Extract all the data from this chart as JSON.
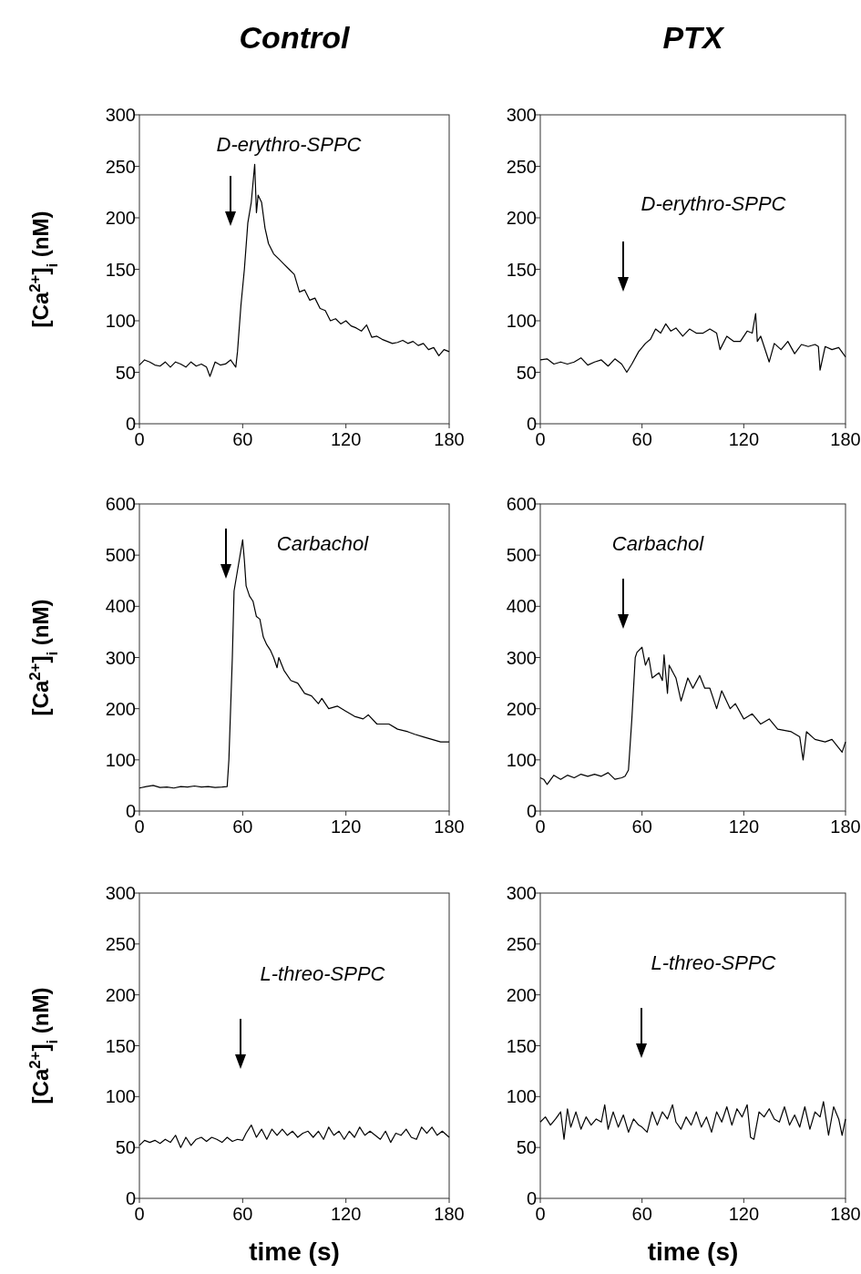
{
  "chart_data": [
    {
      "type": "line",
      "title": "Control",
      "ylabel": "[Ca$^{2+}$]$_{i}$ (nM)",
      "xlim": [
        0,
        180
      ],
      "xticks": [
        0,
        60,
        120,
        180
      ],
      "ylim": [
        0,
        300
      ],
      "yticks": [
        0,
        50,
        100,
        150,
        200,
        250,
        300
      ],
      "tick_labels": "xy",
      "annotations": [
        "D-erythro-SPPC"
      ],
      "series": [
        {
          "color": "#000000",
          "x": [
            0,
            3,
            6,
            9,
            12,
            15,
            18,
            21,
            24,
            27,
            30,
            33,
            36,
            39,
            41,
            44,
            47,
            50,
            53,
            56,
            57,
            59,
            61,
            63,
            65,
            67,
            68,
            69,
            71,
            73,
            75,
            78,
            81,
            84,
            87,
            90,
            93,
            96,
            99,
            102,
            105,
            108,
            111,
            114,
            117,
            120,
            123,
            126,
            129,
            132,
            135,
            138,
            141,
            144,
            147,
            150,
            153,
            156,
            159,
            162,
            165,
            168,
            171,
            174,
            177,
            180
          ],
          "values": [
            57,
            62,
            60,
            57,
            56,
            60,
            55,
            60,
            58,
            55,
            60,
            56,
            58,
            55,
            46,
            60,
            57,
            58,
            62,
            55,
            70,
            115,
            150,
            195,
            215,
            252,
            205,
            222,
            215,
            190,
            175,
            165,
            160,
            155,
            150,
            145,
            128,
            130,
            120,
            122,
            112,
            110,
            100,
            102,
            97,
            100,
            95,
            93,
            90,
            96,
            84,
            85,
            82,
            80,
            78,
            79,
            81,
            78,
            80,
            76,
            78,
            72,
            74,
            66,
            72,
            70
          ]
        }
      ]
    },
    {
      "type": "line",
      "title": "PTX",
      "xlim": [
        0,
        180
      ],
      "xticks": [
        0,
        60,
        120,
        180
      ],
      "ylim": [
        0,
        300
      ],
      "yticks": [
        0,
        50,
        100,
        150,
        200,
        250,
        300
      ],
      "annotations": [
        "D-erythro-SPPC"
      ],
      "series": [
        {
          "color": "#000000",
          "x": [
            0,
            4,
            8,
            12,
            16,
            20,
            24,
            28,
            32,
            36,
            40,
            44,
            48,
            51,
            54,
            58,
            62,
            65,
            68,
            71,
            74,
            77,
            80,
            84,
            88,
            92,
            96,
            100,
            104,
            106,
            110,
            114,
            118,
            122,
            125,
            127,
            128,
            130,
            132,
            135,
            138,
            142,
            146,
            150,
            154,
            158,
            162,
            164,
            165,
            168,
            172,
            176,
            180
          ],
          "values": [
            62,
            63,
            58,
            60,
            58,
            60,
            64,
            57,
            60,
            62,
            56,
            63,
            58,
            50,
            58,
            70,
            78,
            82,
            92,
            88,
            97,
            90,
            93,
            85,
            92,
            88,
            88,
            92,
            88,
            72,
            85,
            80,
            80,
            90,
            88,
            107,
            80,
            85,
            75,
            60,
            78,
            72,
            80,
            68,
            77,
            75,
            77,
            75,
            52,
            75,
            72,
            74,
            65
          ]
        }
      ]
    },
    {
      "type": "line",
      "ylabel": "[Ca$^{2+}$]$_{i}$ (nM)",
      "xlim": [
        0,
        180
      ],
      "xticks": [
        0,
        60,
        120,
        180
      ],
      "ylim": [
        0,
        600
      ],
      "yticks": [
        0,
        100,
        200,
        300,
        400,
        500,
        600
      ],
      "annotations": [
        "Carbachol"
      ],
      "series": [
        {
          "color": "#000000",
          "x": [
            0,
            4,
            8,
            12,
            16,
            20,
            24,
            28,
            32,
            36,
            40,
            44,
            48,
            51,
            52,
            54,
            55,
            57,
            59,
            60,
            61,
            62,
            64,
            66,
            68,
            70,
            72,
            74,
            76,
            78,
            80,
            81,
            84,
            88,
            92,
            96,
            100,
            104,
            106,
            110,
            115,
            120,
            125,
            130,
            133,
            138,
            145,
            150,
            156,
            160,
            165,
            170,
            175,
            180
          ],
          "values": [
            45,
            48,
            50,
            46,
            47,
            45,
            48,
            47,
            49,
            47,
            48,
            46,
            47,
            48,
            100,
            300,
            430,
            470,
            510,
            530,
            490,
            440,
            420,
            410,
            380,
            375,
            340,
            325,
            315,
            300,
            280,
            300,
            275,
            255,
            250,
            230,
            225,
            210,
            220,
            200,
            205,
            195,
            185,
            180,
            188,
            170,
            170,
            160,
            155,
            150,
            145,
            140,
            135,
            135
          ]
        }
      ]
    },
    {
      "type": "line",
      "xlim": [
        0,
        180
      ],
      "xticks": [
        0,
        60,
        120,
        180
      ],
      "ylim": [
        0,
        600
      ],
      "yticks": [
        0,
        100,
        200,
        300,
        400,
        500,
        600
      ],
      "annotations": [
        "Carbachol"
      ],
      "series": [
        {
          "color": "#000000",
          "x": [
            0,
            2,
            4,
            8,
            12,
            16,
            20,
            24,
            28,
            32,
            36,
            40,
            44,
            48,
            50,
            52,
            54,
            56,
            57,
            60,
            62,
            64,
            66,
            70,
            72,
            73,
            75,
            76,
            80,
            83,
            87,
            90,
            94,
            97,
            100,
            104,
            107,
            112,
            115,
            120,
            125,
            130,
            135,
            140,
            148,
            153,
            155,
            157,
            162,
            168,
            172,
            178,
            180
          ],
          "values": [
            65,
            62,
            52,
            70,
            62,
            70,
            65,
            72,
            68,
            72,
            68,
            75,
            62,
            65,
            68,
            80,
            180,
            300,
            310,
            320,
            285,
            300,
            260,
            270,
            255,
            305,
            230,
            285,
            260,
            215,
            260,
            240,
            265,
            240,
            240,
            200,
            235,
            200,
            210,
            180,
            190,
            170,
            180,
            160,
            155,
            145,
            100,
            155,
            140,
            135,
            140,
            115,
            135
          ]
        }
      ]
    },
    {
      "type": "line",
      "ylabel": "[Ca$^{2+}$]$_{i}$ (nM)",
      "xlabel": "time (s)",
      "xlim": [
        0,
        180
      ],
      "xticks": [
        0,
        60,
        120,
        180
      ],
      "ylim": [
        0,
        300
      ],
      "yticks": [
        0,
        50,
        100,
        150,
        200,
        250,
        300
      ],
      "annotations": [
        "L-threo-SPPC"
      ],
      "series": [
        {
          "color": "#000000",
          "x": [
            0,
            3,
            6,
            9,
            12,
            15,
            18,
            21,
            24,
            27,
            30,
            33,
            36,
            39,
            42,
            45,
            48,
            51,
            54,
            57,
            60,
            62,
            65,
            68,
            71,
            74,
            77,
            80,
            83,
            86,
            89,
            92,
            95,
            98,
            101,
            104,
            107,
            110,
            113,
            116,
            119,
            122,
            125,
            128,
            131,
            134,
            137,
            140,
            143,
            146,
            149,
            152,
            155,
            158,
            161,
            164,
            167,
            170,
            173,
            176,
            180
          ],
          "values": [
            52,
            57,
            55,
            57,
            54,
            58,
            55,
            62,
            50,
            60,
            52,
            58,
            60,
            56,
            60,
            58,
            55,
            60,
            56,
            58,
            57,
            64,
            72,
            60,
            68,
            58,
            68,
            62,
            68,
            62,
            66,
            60,
            64,
            66,
            60,
            66,
            58,
            70,
            62,
            66,
            58,
            66,
            60,
            70,
            62,
            66,
            62,
            58,
            66,
            55,
            64,
            62,
            68,
            60,
            58,
            70,
            64,
            70,
            62,
            66,
            60
          ]
        }
      ]
    },
    {
      "type": "line",
      "xlabel": "time (s)",
      "xlim": [
        0,
        180
      ],
      "xticks": [
        0,
        60,
        120,
        180
      ],
      "ylim": [
        0,
        300
      ],
      "yticks": [
        0,
        50,
        100,
        150,
        200,
        250,
        300
      ],
      "annotations": [
        "L-threo-SPPC"
      ],
      "series": [
        {
          "color": "#000000",
          "x": [
            0,
            3,
            6,
            9,
            12,
            14,
            16,
            18,
            21,
            24,
            27,
            30,
            33,
            36,
            38,
            40,
            43,
            46,
            49,
            52,
            55,
            58,
            60,
            63,
            66,
            69,
            72,
            75,
            78,
            80,
            83,
            86,
            89,
            92,
            95,
            98,
            101,
            104,
            107,
            110,
            113,
            116,
            119,
            122,
            124,
            126,
            129,
            132,
            135,
            138,
            141,
            144,
            147,
            150,
            153,
            156,
            159,
            162,
            165,
            167,
            170,
            173,
            176,
            178,
            180
          ],
          "values": [
            75,
            80,
            72,
            78,
            85,
            58,
            88,
            70,
            85,
            68,
            80,
            72,
            78,
            75,
            92,
            68,
            85,
            70,
            82,
            65,
            78,
            72,
            70,
            65,
            85,
            72,
            85,
            78,
            92,
            75,
            68,
            80,
            72,
            85,
            70,
            80,
            65,
            85,
            75,
            90,
            72,
            88,
            80,
            92,
            60,
            58,
            85,
            80,
            88,
            78,
            75,
            90,
            72,
            82,
            70,
            90,
            68,
            85,
            80,
            95,
            62,
            90,
            78,
            62,
            78
          ]
        }
      ]
    }
  ]
}
